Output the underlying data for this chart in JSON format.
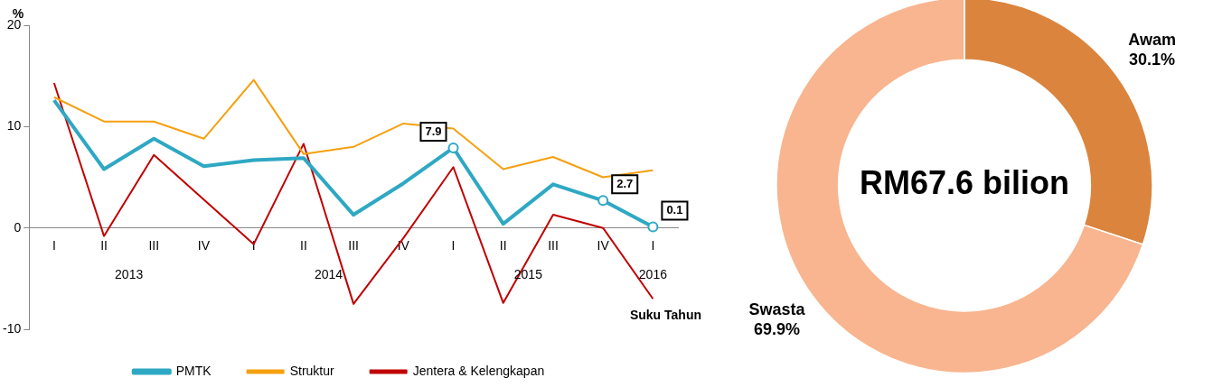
{
  "chart_data": [
    {
      "type": "line",
      "categories": [
        "I",
        "II",
        "III",
        "IV",
        "I",
        "II",
        "III",
        "IV",
        "I",
        "II",
        "III",
        "IV",
        "I"
      ],
      "ylabel": "%",
      "xlabel": "Suku Tahun",
      "ylim": [
        -10,
        20
      ],
      "yticks": [
        -10,
        0,
        10,
        20
      ],
      "legend": "bottom",
      "grid": false,
      "line_style": "solid",
      "annotations": [
        "2013",
        "2014",
        "2015",
        "2016"
      ],
      "series": [
        {
          "name": "PMTK",
          "color": "#2ea8c3",
          "values": [
            12.6,
            5.8,
            8.8,
            6.1,
            6.7,
            6.9,
            1.3,
            4.4,
            7.9,
            0.4,
            4.3,
            2.7,
            0.1
          ],
          "value_labels": [
            null,
            null,
            null,
            null,
            null,
            null,
            null,
            null,
            "7.9",
            null,
            null,
            "2.7",
            "0.1"
          ]
        },
        {
          "name": "Struktur",
          "color": "#f5a00f",
          "values": [
            12.9,
            10.5,
            10.5,
            8.8,
            14.6,
            7.3,
            8.0,
            10.3,
            9.8,
            5.8,
            7.0,
            5.0,
            5.7
          ]
        },
        {
          "name": "Jentera & Kelengkapan",
          "color": "#c00000",
          "values": [
            14.3,
            -0.8,
            7.2,
            2.8,
            -1.6,
            8.3,
            -7.5,
            -1.0,
            6.0,
            -7.4,
            1.3,
            0.0,
            -7.0
          ]
        }
      ]
    },
    {
      "type": "donut",
      "categories": [
        "Awam",
        "Swasta"
      ],
      "values": [
        30.1,
        69.9
      ],
      "colors": [
        "#db843d",
        "#f8b58f"
      ],
      "value_labels": [
        "30.1%",
        "69.9%"
      ],
      "annotations": [
        "RM67.6 bilion"
      ],
      "legend": false
    }
  ]
}
